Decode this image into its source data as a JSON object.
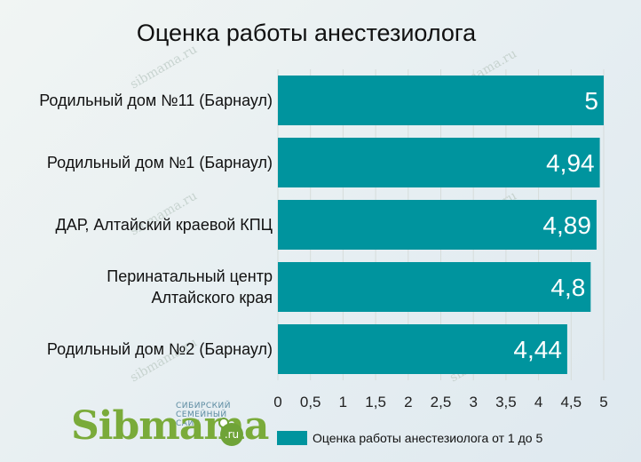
{
  "chart_data": {
    "type": "bar",
    "orientation": "horizontal",
    "title": "Оценка работы анестезиолога",
    "categories": [
      [
        "Родильный дом №11 (Барнаул)"
      ],
      [
        "Родильный дом №1 (Барнаул)"
      ],
      [
        "ДАР, Алтайский краевой КПЦ"
      ],
      [
        "Перинатальный центр",
        "Алтайского края"
      ],
      [
        "Родильный дом №2 (Барнаул)"
      ]
    ],
    "series": [
      {
        "name": "Оценка работы анестезиолога от 1 до 5",
        "values": [
          5,
          4.94,
          4.89,
          4.8,
          4.44
        ],
        "labels": [
          "5",
          "4,94",
          "4,89",
          "4,8",
          "4,44"
        ],
        "color": "#00949e"
      }
    ],
    "xlim": [
      0,
      5
    ],
    "ticks": [
      0,
      0.5,
      1,
      1.5,
      2,
      2.5,
      3,
      3.5,
      4,
      4.5,
      5
    ],
    "tick_labels": [
      "0",
      "0,5",
      "1",
      "1,5",
      "2",
      "2,5",
      "3",
      "3,5",
      "4",
      "4,5",
      "5"
    ],
    "grid": "vertical",
    "legend_position": "bottom-right"
  },
  "logo": {
    "tagline": "СИБИРСКИЙ СЕМЕЙНЫЙ САЙТ",
    "name": "Sibmama",
    "suffix": ".ru"
  },
  "watermarks": [
    "sibmama.ru",
    "sibmama.ru",
    "sibmama.ru",
    "sibmama.ru",
    "sibmama.ru",
    "sibmama.ru"
  ]
}
